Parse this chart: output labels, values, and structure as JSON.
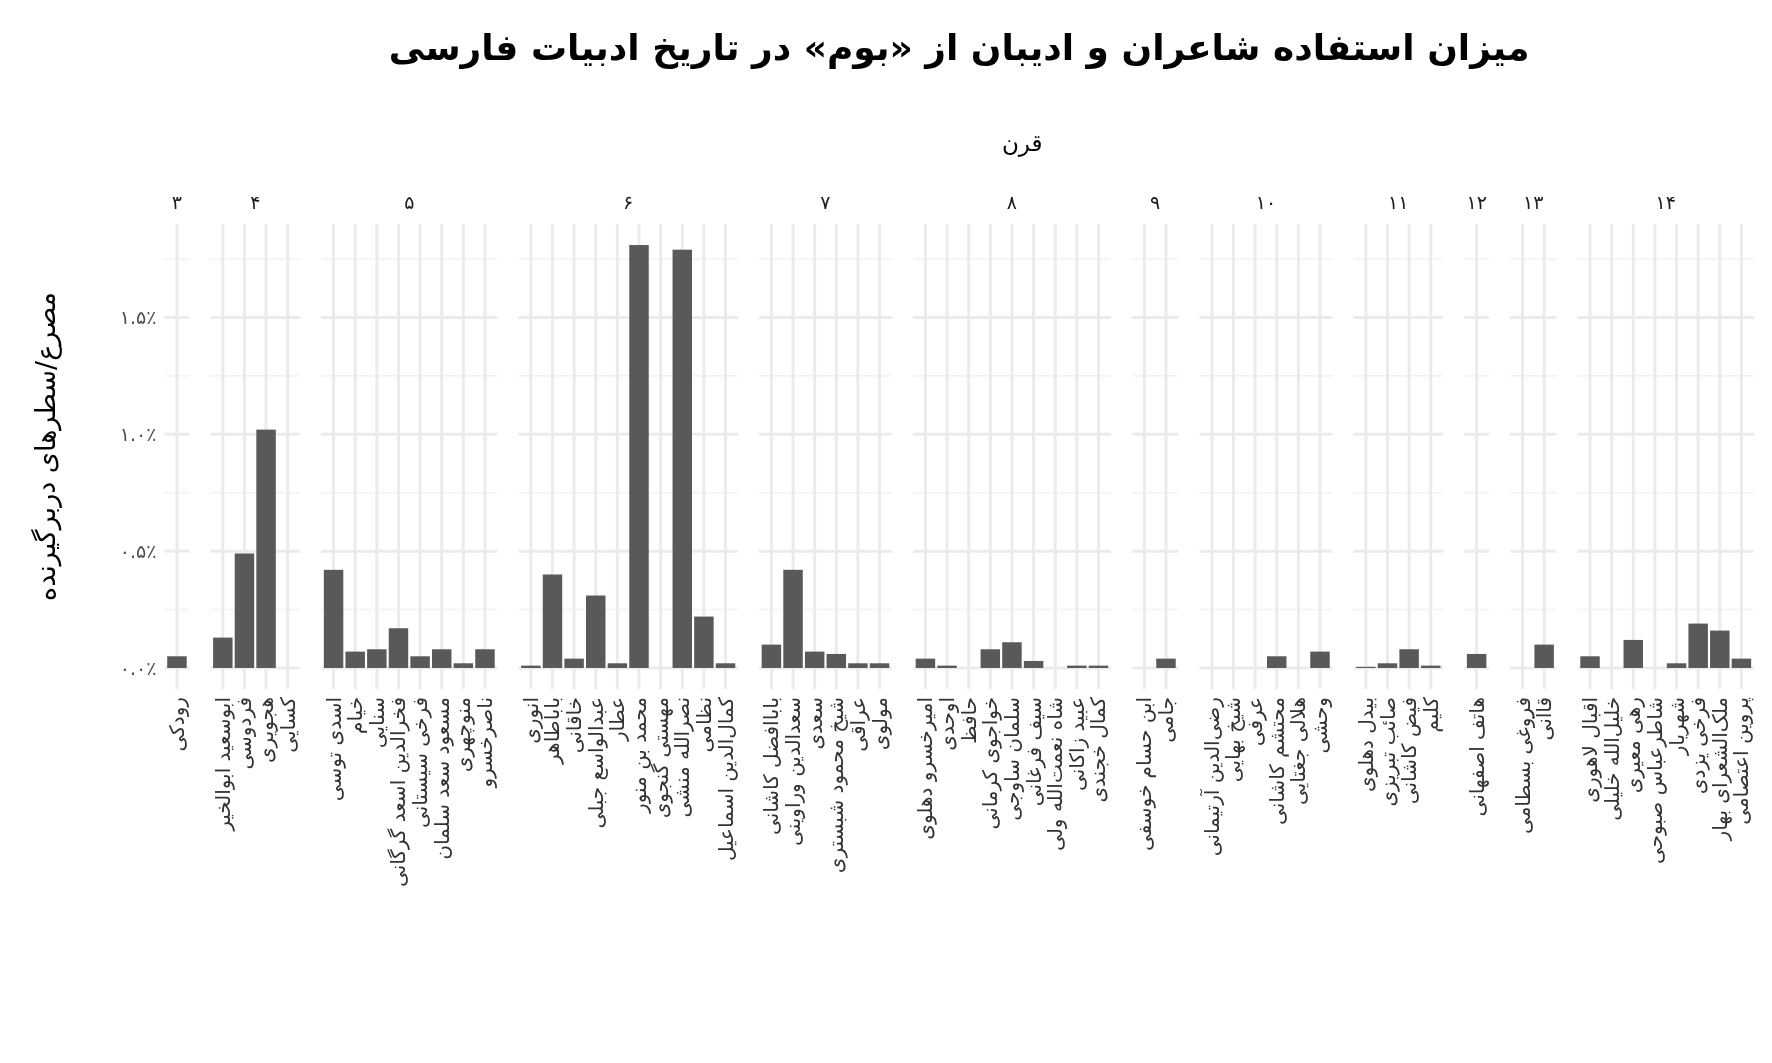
{
  "chart_data": [
    {
      "type": "other",
      "title": "میزان استفاده شاعران و ادیبان از «بوم» در تاریخ ادبیات فارسی",
      "subtitle": "قرن"
    },
    {
      "type": "bar",
      "ylabel": "مصرع/سطرهای دربرگیرنده",
      "x2label": "۳",
      "categories": [
        "رودکی"
      ],
      "values": [
        0.05
      ],
      "color": "#595959",
      "ylim": [
        -0.09,
        1.9
      ],
      "yticks": [
        {
          "value": 0,
          "label": "۰.۰٪"
        },
        {
          "value": 0.5,
          "label": "۰.۵٪"
        },
        {
          "value": 1,
          "label": "۱.۰٪"
        },
        {
          "value": 1.5,
          "label": "۱.۵٪"
        }
      ],
      "grid": true
    },
    {
      "type": "bar",
      "x2label": "۴",
      "categories": [
        "ابوسعید ابوالخیر",
        "فردوسی",
        "هجویری",
        "کسایی"
      ],
      "values": [
        0.13,
        0.49,
        1.02,
        0
      ],
      "color": "#595959",
      "ylim": [
        -0.09,
        1.9
      ],
      "yticks": [
        0,
        0.5,
        1,
        1.5
      ],
      "grid": true,
      "tick_labels": "x"
    },
    {
      "type": "bar",
      "x2label": "۵",
      "categories": [
        "اسدی توسی",
        "خیام",
        "سنایی",
        "فخرالدین اسعد گرگانی",
        "فرخی سیستانی",
        "مسعود سعد سلمان",
        "منوچهری",
        "ناصرخسرو"
      ],
      "values": [
        0.42,
        0.07,
        0.08,
        0.17,
        0.05,
        0.08,
        0.02,
        0.08
      ],
      "color": "#595959",
      "ylim": [
        -0.09,
        1.9
      ],
      "yticks": [
        0,
        0.5,
        1,
        1.5
      ],
      "grid": true,
      "tick_labels": "x"
    },
    {
      "type": "bar",
      "x2label": "۶",
      "categories": [
        "انوری",
        "باباطاهر",
        "خاقانی",
        "عبدالواسع جبلی",
        "عطار",
        "محمد بن منور",
        "مهستی گنجوی",
        "نصرالله منشی",
        "نظامی",
        "کمال‌الدین اسماعیل"
      ],
      "values": [
        0.01,
        0.4,
        0.04,
        0.31,
        0.02,
        1.81,
        0,
        1.79,
        0.22,
        0.02
      ],
      "color": "#595959",
      "ylim": [
        -0.09,
        1.9
      ],
      "yticks": [
        0,
        0.5,
        1,
        1.5
      ],
      "grid": true,
      "tick_labels": "x"
    },
    {
      "type": "bar",
      "x2label": "۷",
      "categories": [
        "باباافضل کاشانی",
        "سعدالدین وراوینی",
        "سعدی",
        "شیخ محمود شبستری",
        "عراقی",
        "مولوی"
      ],
      "values": [
        0.1,
        0.42,
        0.07,
        0.06,
        0.02,
        0.02
      ],
      "color": "#595959",
      "ylim": [
        -0.09,
        1.9
      ],
      "yticks": [
        0,
        0.5,
        1,
        1.5
      ],
      "grid": true,
      "tick_labels": "x"
    },
    {
      "type": "bar",
      "x2label": "۸",
      "categories": [
        "امیرخسرو دهلوی",
        "اوحدی",
        "حافظ",
        "خواجوی کرمانی",
        "سلمان ساوجی",
        "سیف فرغانی",
        "شاه نعمت‌الله ولی",
        "عبید زاکانی",
        "کمال خجندی"
      ],
      "values": [
        0.04,
        0.01,
        0,
        0.08,
        0.11,
        0.03,
        0,
        0.01,
        0.01
      ],
      "color": "#595959",
      "ylim": [
        -0.09,
        1.9
      ],
      "yticks": [
        0,
        0.5,
        1,
        1.5
      ],
      "grid": true,
      "tick_labels": "x"
    },
    {
      "type": "bar",
      "x2label": "۹",
      "categories": [
        "ابن حسام خوسفی",
        "جامی"
      ],
      "values": [
        0,
        0.04
      ],
      "color": "#595959",
      "ylim": [
        -0.09,
        1.9
      ],
      "yticks": [
        0,
        0.5,
        1,
        1.5
      ],
      "grid": true,
      "tick_labels": "x"
    },
    {
      "type": "bar",
      "x2label": "۱۰",
      "categories": [
        "رضی‌الدین آرتیمانی",
        "شیخ بهایی",
        "عرفی",
        "محتشم کاشانی",
        "هلالی جغتایی",
        "وحشی"
      ],
      "values": [
        0,
        0,
        0,
        0.05,
        0,
        0.07
      ],
      "color": "#595959",
      "ylim": [
        -0.09,
        1.9
      ],
      "yticks": [
        0,
        0.5,
        1,
        1.5
      ],
      "grid": true,
      "tick_labels": "x"
    },
    {
      "type": "bar",
      "x2label": "۱۱",
      "categories": [
        "بیدل دهلوی",
        "صائب تبریزی",
        "فیض کاشانی",
        "کلیم"
      ],
      "values": [
        0.005,
        0.02,
        0.08,
        0.01
      ],
      "color": "#595959",
      "ylim": [
        -0.09,
        1.9
      ],
      "yticks": [
        0,
        0.5,
        1,
        1.5
      ],
      "grid": true,
      "tick_labels": "x"
    },
    {
      "type": "bar",
      "x2label": "۱۲",
      "categories": [
        "هاتف اصفهانی"
      ],
      "values": [
        0.06
      ],
      "color": "#595959",
      "ylim": [
        -0.09,
        1.9
      ],
      "yticks": [
        0,
        0.5,
        1,
        1.5
      ],
      "grid": true,
      "tick_labels": "x"
    },
    {
      "type": "bar",
      "x2label": "۱۳",
      "categories": [
        "فروغی بسطامی",
        "قاآنی"
      ],
      "values": [
        0,
        0.1
      ],
      "color": "#595959",
      "ylim": [
        -0.09,
        1.9
      ],
      "yticks": [
        0,
        0.5,
        1,
        1.5
      ],
      "grid": true,
      "tick_labels": "x"
    },
    {
      "type": "bar",
      "x2label": "۱۴",
      "categories": [
        "اقبال لاهوری",
        "خلیل‌الله خلیلی",
        "رهی معیری",
        "شاطرعباس صبوحی",
        "شهریار",
        "فرخی یزدی",
        "ملک‌الشعرای بهار",
        "پروین اعتصامی"
      ],
      "values": [
        0.05,
        0,
        0.12,
        0,
        0.02,
        0.19,
        0.16,
        0.04
      ],
      "color": "#595959",
      "ylim": [
        -0.09,
        1.9
      ],
      "yticks": [
        0,
        0.5,
        1,
        1.5
      ],
      "grid": true,
      "tick_labels": "x"
    }
  ]
}
